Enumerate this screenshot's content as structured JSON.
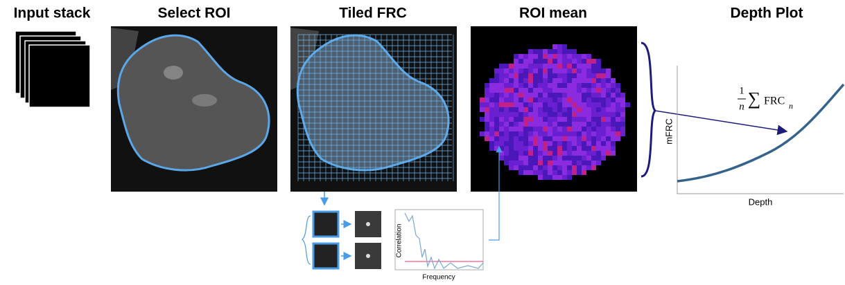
{
  "panels": [
    {
      "title": "Input stack"
    },
    {
      "title": "Select ROI"
    },
    {
      "title": "Tiled FRC"
    },
    {
      "title": "ROI mean"
    },
    {
      "title": "Depth Plot"
    }
  ],
  "depth_plot": {
    "y_label": "mFRC",
    "x_label": "Depth",
    "formula": {
      "numerator": "1",
      "denominator": "n",
      "symbol": "∑",
      "term": "FRC",
      "subscript": "n"
    }
  },
  "frc_plot": {
    "y_label": "Correlation",
    "x_label": "Frequency"
  }
}
